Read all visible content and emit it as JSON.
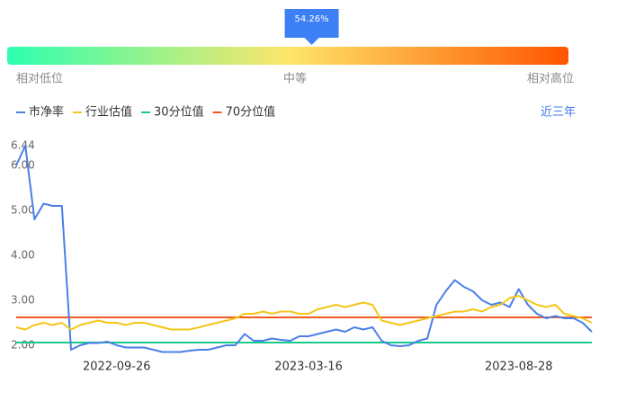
{
  "chart_data": {
    "type": "line",
    "gauge": {
      "value": 54.26,
      "value_label": "54.26%",
      "range": [
        0,
        100
      ],
      "labels": [
        "相对低位",
        "中等",
        "相对高位"
      ]
    },
    "period": "近三年",
    "categories": [
      null,
      null,
      null,
      null,
      null,
      null,
      null,
      null,
      null,
      null,
      null,
      "2022-09-26",
      null,
      null,
      null,
      null,
      null,
      null,
      null,
      null,
      null,
      null,
      null,
      null,
      null,
      null,
      null,
      null,
      null,
      null,
      null,
      null,
      "2023-03-16",
      null,
      null,
      null,
      null,
      null,
      null,
      null,
      null,
      null,
      null,
      null,
      null,
      null,
      null,
      null,
      null,
      null,
      null,
      null,
      null,
      null,
      null,
      "2023-08-28",
      null,
      null,
      null,
      null,
      null,
      null,
      null,
      null
    ],
    "series": [
      {
        "name": "市净率",
        "color": "#4a7fe8",
        "values": [
          6.0,
          6.44,
          4.8,
          5.15,
          5.1,
          5.1,
          1.9,
          2.0,
          2.05,
          2.05,
          2.08,
          2.0,
          1.95,
          1.95,
          1.95,
          1.9,
          1.85,
          1.85,
          1.85,
          1.88,
          1.9,
          1.9,
          1.95,
          2.0,
          2.0,
          2.25,
          2.1,
          2.1,
          2.15,
          2.12,
          2.1,
          2.2,
          2.2,
          2.25,
          2.3,
          2.35,
          2.3,
          2.4,
          2.35,
          2.4,
          2.1,
          2.0,
          1.98,
          2.0,
          2.1,
          2.15,
          2.9,
          3.2,
          3.45,
          3.3,
          3.2,
          3.0,
          2.9,
          2.95,
          2.85,
          3.25,
          2.9,
          2.7,
          2.6,
          2.65,
          2.6,
          2.6,
          2.5,
          2.3
        ]
      },
      {
        "name": "行业估值",
        "color": "#f5c518",
        "values": [
          2.4,
          2.35,
          2.45,
          2.5,
          2.45,
          2.5,
          2.35,
          2.45,
          2.5,
          2.55,
          2.5,
          2.5,
          2.45,
          2.5,
          2.5,
          2.45,
          2.4,
          2.35,
          2.35,
          2.35,
          2.4,
          2.45,
          2.5,
          2.55,
          2.6,
          2.7,
          2.7,
          2.75,
          2.7,
          2.75,
          2.75,
          2.7,
          2.7,
          2.8,
          2.85,
          2.9,
          2.85,
          2.9,
          2.95,
          2.9,
          2.55,
          2.5,
          2.45,
          2.5,
          2.55,
          2.6,
          2.65,
          2.7,
          2.75,
          2.75,
          2.8,
          2.75,
          2.85,
          2.9,
          3.05,
          3.1,
          3.0,
          2.9,
          2.85,
          2.9,
          2.7,
          2.65,
          2.6,
          2.5
        ]
      },
      {
        "name": "30分位值",
        "color": "#19c98a",
        "level": 2.06
      },
      {
        "name": "70分位值",
        "color": "#f25a1f",
        "level": 2.62
      }
    ],
    "ylim": [
      1.84,
      6.44
    ],
    "yticks": [
      {
        "value": 2,
        "label": "2.00"
      },
      {
        "value": 3,
        "label": "3.00"
      },
      {
        "value": 4,
        "label": "4.00"
      },
      {
        "value": 5,
        "label": "5.00"
      },
      {
        "value": 6,
        "label": "6.00"
      },
      {
        "value": 6.44,
        "label": "6.44"
      }
    ]
  }
}
